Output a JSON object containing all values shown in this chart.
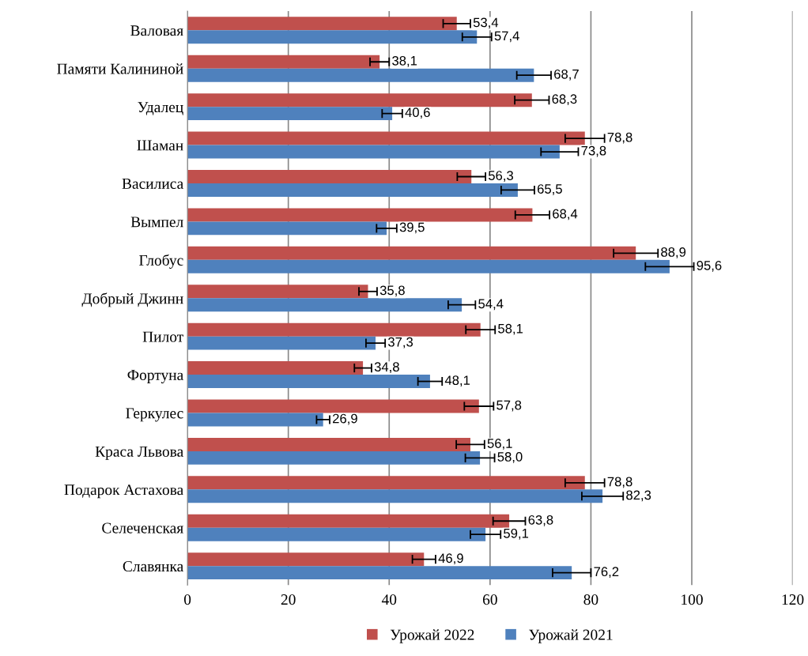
{
  "chart_data": {
    "type": "bar",
    "orientation": "horizontal",
    "categories": [
      "Валовая",
      "Памяти Калининой",
      "Удалец",
      "Шаман",
      "Василиса",
      "Вымпел",
      "Глобус",
      "Добрый Джинн",
      "Пилот",
      "Фортуна",
      "Геркулес",
      "Краса Львова",
      "Подарок Астахова",
      "Селеченская",
      "Славянка"
    ],
    "series": [
      {
        "name": "Урожай 2022",
        "color": "#c0504d",
        "values": [
          53.4,
          38.1,
          68.3,
          78.8,
          56.3,
          68.4,
          88.9,
          35.8,
          58.1,
          34.8,
          57.8,
          56.1,
          78.8,
          63.8,
          46.9
        ],
        "errors": [
          2.7,
          1.9,
          3.4,
          3.9,
          2.8,
          3.4,
          4.4,
          1.8,
          2.9,
          1.7,
          2.9,
          2.8,
          3.9,
          3.2,
          2.3
        ],
        "value_labels": [
          "53,4",
          "38,1",
          "68,3",
          "78,8",
          "56,3",
          "68,4",
          "88,9",
          "35,8",
          "58,1",
          "34,8",
          "57,8",
          "56,1",
          "78,8",
          "63,8",
          "46,9"
        ]
      },
      {
        "name": "Урожай 2021",
        "color": "#4f81bd",
        "values": [
          57.4,
          68.7,
          40.6,
          73.8,
          65.5,
          39.5,
          95.6,
          54.4,
          37.3,
          48.1,
          26.9,
          58.0,
          82.3,
          59.1,
          76.2
        ],
        "errors": [
          2.9,
          3.4,
          2.0,
          3.7,
          3.3,
          2.0,
          4.8,
          2.7,
          1.9,
          2.4,
          1.3,
          2.9,
          4.1,
          3.0,
          3.8
        ],
        "value_labels": [
          "57,4",
          "68,7",
          "40,6",
          "73,8",
          "65,5",
          "39,5",
          "95,6",
          "54,4",
          "37,3",
          "48,1",
          "26,9",
          "58,0",
          "82,3",
          "59,1",
          "76,2"
        ]
      }
    ],
    "xlim": [
      0,
      120
    ],
    "xticks": [
      0,
      20,
      40,
      60,
      80,
      100,
      120
    ],
    "grid": "x",
    "legend": "bottom"
  }
}
